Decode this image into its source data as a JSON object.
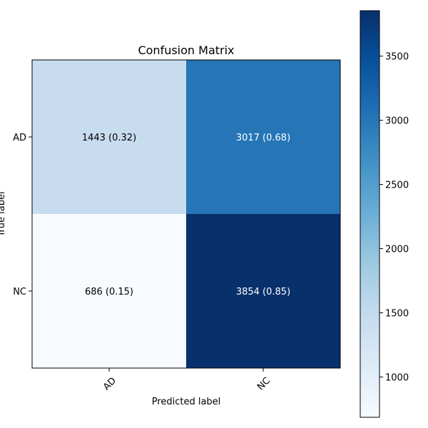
{
  "chart_data": {
    "type": "heatmap",
    "title": "Confusion Matrix",
    "xlabel": "Predicted label",
    "ylabel": "True label",
    "x_categories": [
      "AD",
      "NC"
    ],
    "y_categories": [
      "AD",
      "NC"
    ],
    "values": [
      [
        1443,
        3017
      ],
      [
        686,
        3854
      ]
    ],
    "row_fractions": [
      [
        0.32,
        0.68
      ],
      [
        0.15,
        0.85
      ]
    ],
    "cell_labels": [
      [
        "1443 (0.32)",
        "3017 (0.68)"
      ],
      [
        "686 (0.15)",
        "3854 (0.85)"
      ]
    ],
    "colormap": "Blues",
    "color_range": [
      686,
      3854
    ],
    "colorbar_ticks": [
      1000,
      1500,
      2000,
      2500,
      3000,
      3500
    ],
    "colorbar_tick_labels": [
      "1000",
      "1500",
      "2000",
      "2500",
      "3000",
      "3500"
    ],
    "grid": false
  },
  "colors": {
    "blues_stops": [
      "#f7fbff",
      "#deebf7",
      "#c6dbef",
      "#9ecae1",
      "#6baed6",
      "#4292c6",
      "#2171b5",
      "#08519c",
      "#08306b"
    ],
    "text_dark": "#000000",
    "text_light": "#ffffff"
  }
}
